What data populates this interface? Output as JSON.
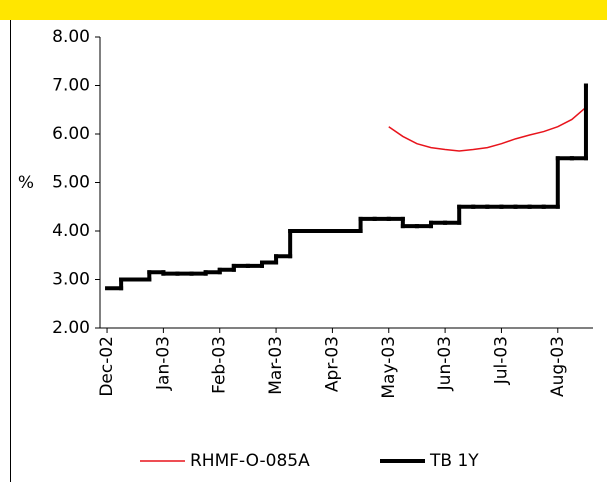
{
  "chart_data": {
    "type": "line",
    "categories": [
      "Dec-02",
      null,
      null,
      null,
      "Jan-03",
      null,
      null,
      null,
      "Feb-03",
      null,
      null,
      null,
      "Mar-03",
      null,
      null,
      null,
      "Apr-03",
      null,
      null,
      null,
      "May-03",
      null,
      null,
      null,
      "Jun-03",
      null,
      null,
      null,
      "Jul-03",
      null,
      null,
      null,
      "Aug-03",
      null,
      null
    ],
    "series": [
      {
        "name": "RHMF-O-085A",
        "color": "#e8141c",
        "step": false,
        "values": [
          null,
          null,
          null,
          null,
          null,
          null,
          null,
          null,
          null,
          null,
          null,
          null,
          null,
          null,
          null,
          null,
          null,
          null,
          null,
          null,
          6.15,
          5.95,
          5.8,
          5.72,
          5.68,
          5.65,
          5.68,
          5.72,
          5.8,
          5.9,
          5.98,
          6.05,
          6.15,
          6.3,
          6.55
        ]
      },
      {
        "name": "TB 1Y",
        "color": "#000000",
        "step": true,
        "values": [
          2.82,
          3.0,
          3.0,
          3.15,
          3.12,
          3.12,
          3.12,
          3.15,
          3.2,
          3.28,
          3.28,
          3.35,
          3.48,
          4.0,
          4.0,
          4.0,
          4.0,
          4.0,
          4.25,
          4.25,
          4.25,
          4.1,
          4.1,
          4.17,
          4.17,
          4.5,
          4.5,
          4.5,
          4.5,
          4.5,
          4.5,
          4.5,
          5.5,
          5.5,
          7.0
        ]
      }
    ],
    "y_label": "%",
    "ylim": [
      2,
      8
    ],
    "yticks": [
      {
        "value": 2,
        "label": "2.00"
      },
      {
        "value": 3,
        "label": "3.00"
      },
      {
        "value": 4,
        "label": "4.00"
      },
      {
        "value": 5,
        "label": "5.00"
      },
      {
        "value": 6,
        "label": "6.00"
      },
      {
        "value": 7,
        "label": "7.00"
      },
      {
        "value": 8,
        "label": "8.00"
      }
    ],
    "grid": false
  }
}
